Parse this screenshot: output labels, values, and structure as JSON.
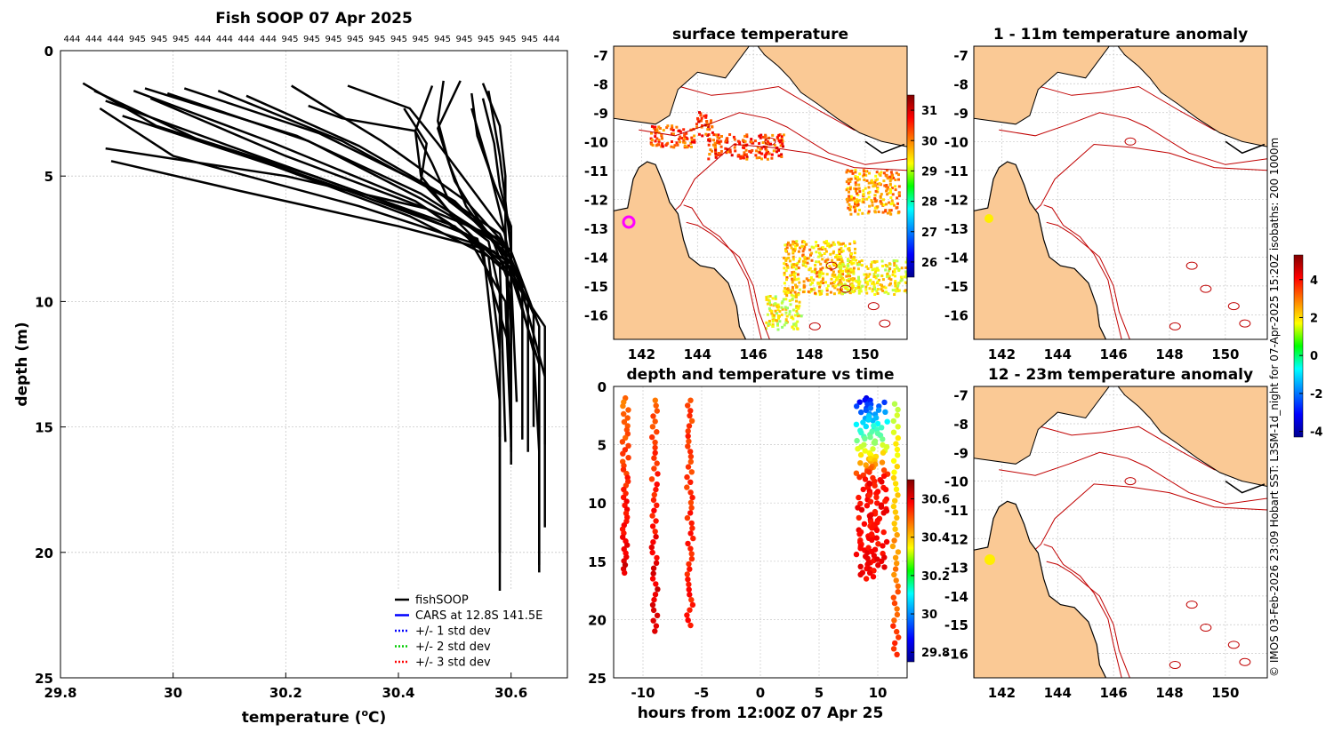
{
  "chart_data": [
    {
      "id": "profile",
      "type": "line",
      "title": "Fish SOOP 07 Apr 2025",
      "top_labels": [
        "444",
        "444",
        "444",
        "945",
        "945",
        "945",
        "444",
        "444",
        "444",
        "444",
        "945",
        "945",
        "945",
        "945",
        "945",
        "945",
        "945",
        "945",
        "945",
        "945",
        "945",
        "945",
        "444"
      ],
      "xlabel": "temperature (",
      "xlabel_sup": "o",
      "xlabel_end": "C)",
      "ylabel": "depth (m)",
      "xlim": [
        29.8,
        30.7
      ],
      "ylim": [
        0,
        25
      ],
      "xticks": [
        29.8,
        30,
        30.2,
        30.4,
        30.6
      ],
      "xtick_labels": [
        "29.8",
        "30",
        "30.2",
        "30.4",
        "30.6"
      ],
      "yticks": [
        0,
        5,
        10,
        15,
        20,
        25
      ],
      "legend": [
        {
          "label": "fishSOOP",
          "color": "#000000",
          "style": "solid"
        },
        {
          "label": "CARS at 12.8S 141.5E",
          "color": "#0000ff",
          "style": "solid"
        },
        {
          "label": "+/- 1 std dev",
          "color": "#0000ff",
          "style": "dotted"
        },
        {
          "label": "+/- 2 std dev",
          "color": "#00cc00",
          "style": "dotted"
        },
        {
          "label": "+/- 3 std dev",
          "color": "#ff0000",
          "style": "dotted"
        }
      ],
      "series": [
        {
          "name": "p1",
          "points": [
            [
              29.84,
              1.3
            ],
            [
              29.97,
              3.0
            ],
            [
              30.25,
              5.0
            ],
            [
              30.5,
              7.0
            ],
            [
              30.6,
              9.0
            ],
            [
              30.61,
              14.0
            ]
          ]
        },
        {
          "name": "p2",
          "points": [
            [
              29.86,
              1.6
            ],
            [
              30.04,
              3.5
            ],
            [
              30.3,
              5.5
            ],
            [
              30.52,
              7.3
            ],
            [
              30.59,
              10.0
            ],
            [
              30.6,
              15.5
            ]
          ]
        },
        {
          "name": "p3",
          "points": [
            [
              29.88,
              2.0
            ],
            [
              30.1,
              3.8
            ],
            [
              30.35,
              5.8
            ],
            [
              30.54,
              7.5
            ],
            [
              30.6,
              12.0
            ],
            [
              30.6,
              16.0
            ]
          ]
        },
        {
          "name": "p4",
          "points": [
            [
              29.87,
              2.3
            ],
            [
              30.0,
              4.2
            ],
            [
              30.33,
              6.2
            ],
            [
              30.55,
              7.8
            ],
            [
              30.58,
              14.0
            ],
            [
              30.58,
              20.0
            ]
          ]
        },
        {
          "name": "p5",
          "points": [
            [
              29.91,
              2.6
            ],
            [
              30.18,
              4.6
            ],
            [
              30.42,
              6.6
            ],
            [
              30.56,
              8.2
            ],
            [
              30.58,
              12.0
            ],
            [
              30.58,
              22.3
            ]
          ]
        },
        {
          "name": "p6",
          "points": [
            [
              29.93,
              1.6
            ],
            [
              30.18,
              3.7
            ],
            [
              30.43,
              6.0
            ],
            [
              30.6,
              8.5
            ],
            [
              30.64,
              12.0
            ],
            [
              30.65,
              16.0
            ]
          ]
        },
        {
          "name": "p7",
          "points": [
            [
              29.95,
              1.5
            ],
            [
              30.22,
              3.4
            ],
            [
              30.44,
              5.7
            ],
            [
              30.6,
              8.0
            ],
            [
              30.65,
              11.0
            ],
            [
              30.65,
              20.8
            ]
          ]
        },
        {
          "name": "p8",
          "points": [
            [
              29.96,
              1.9
            ],
            [
              30.2,
              4.2
            ],
            [
              30.45,
              6.3
            ],
            [
              30.61,
              8.8
            ],
            [
              30.66,
              13.0
            ],
            [
              30.66,
              19.0
            ]
          ]
        },
        {
          "name": "p9",
          "points": [
            [
              29.99,
              1.7
            ],
            [
              30.24,
              3.6
            ],
            [
              30.44,
              5.9
            ],
            [
              30.57,
              7.6
            ],
            [
              30.63,
              10.0
            ],
            [
              30.63,
              16.0
            ]
          ]
        },
        {
          "name": "p10",
          "points": [
            [
              30.02,
              1.5
            ],
            [
              30.26,
              3.3
            ],
            [
              30.46,
              5.5
            ],
            [
              30.58,
              7.3
            ],
            [
              30.62,
              9.3
            ],
            [
              30.62,
              15.5
            ]
          ]
        },
        {
          "name": "p11",
          "points": [
            [
              30.08,
              1.6
            ],
            [
              30.3,
              3.6
            ],
            [
              30.48,
              5.8
            ],
            [
              30.59,
              7.8
            ],
            [
              30.6,
              11.0
            ],
            [
              30.6,
              15.8
            ]
          ]
        },
        {
          "name": "p12",
          "points": [
            [
              30.13,
              1.8
            ],
            [
              30.33,
              3.8
            ],
            [
              30.5,
              6.0
            ],
            [
              30.6,
              8.3
            ],
            [
              30.6,
              16.5
            ]
          ]
        },
        {
          "name": "p13",
          "points": [
            [
              30.21,
              1.4
            ],
            [
              30.37,
              3.6
            ],
            [
              30.52,
              6.0
            ],
            [
              30.6,
              8.0
            ],
            [
              30.6,
              15.0
            ]
          ]
        },
        {
          "name": "p14",
          "points": [
            [
              30.24,
              2.2
            ],
            [
              30.3,
              2.7
            ],
            [
              30.43,
              3.2
            ],
            [
              30.46,
              4.5
            ],
            [
              30.49,
              6.0
            ],
            [
              30.55,
              7.0
            ],
            [
              30.6,
              8.5
            ],
            [
              30.6,
              15.5
            ]
          ]
        },
        {
          "name": "p15",
          "points": [
            [
              30.31,
              1.4
            ],
            [
              30.42,
              2.3
            ],
            [
              30.47,
              3.7
            ],
            [
              30.53,
              5.5
            ],
            [
              30.59,
              7.3
            ],
            [
              30.6,
              15.0
            ]
          ]
        },
        {
          "name": "p16",
          "points": [
            [
              30.41,
              2.3
            ],
            [
              30.45,
              3.7
            ],
            [
              30.44,
              5.2
            ],
            [
              30.49,
              6.4
            ],
            [
              30.56,
              7.6
            ],
            [
              30.58,
              9.7
            ],
            [
              30.58,
              15.4
            ]
          ]
        },
        {
          "name": "p17",
          "points": [
            [
              30.46,
              1.4
            ],
            [
              30.43,
              3.2
            ],
            [
              30.44,
              5.0
            ],
            [
              30.5,
              6.7
            ],
            [
              30.58,
              8.5
            ],
            [
              30.59,
              15.6
            ]
          ]
        },
        {
          "name": "p18",
          "points": [
            [
              30.48,
              1.2
            ],
            [
              30.47,
              2.8
            ],
            [
              30.49,
              4.5
            ],
            [
              30.52,
              6.2
            ],
            [
              30.57,
              7.7
            ],
            [
              30.6,
              9.5
            ],
            [
              30.6,
              15.6
            ]
          ]
        },
        {
          "name": "p19",
          "points": [
            [
              30.51,
              1.2
            ],
            [
              30.47,
              3.1
            ],
            [
              30.5,
              5.2
            ],
            [
              30.55,
              7.0
            ],
            [
              30.6,
              8.5
            ],
            [
              30.64,
              10.5
            ],
            [
              30.64,
              15.0
            ]
          ]
        },
        {
          "name": "p20",
          "points": [
            [
              30.53,
              1.7
            ],
            [
              30.54,
              3.4
            ],
            [
              30.57,
              5.3
            ],
            [
              30.6,
              7.0
            ],
            [
              30.6,
              16.0
            ]
          ]
        },
        {
          "name": "p21",
          "points": [
            [
              30.55,
              1.9
            ],
            [
              30.57,
              3.7
            ],
            [
              30.58,
              5.4
            ],
            [
              30.6,
              7.2
            ],
            [
              30.6,
              15.0
            ]
          ]
        },
        {
          "name": "p22",
          "points": [
            [
              30.56,
              1.6
            ],
            [
              30.58,
              4.2
            ],
            [
              30.59,
              6.0
            ],
            [
              30.6,
              8.0
            ],
            [
              30.6,
              15.8
            ]
          ]
        },
        {
          "name": "p23",
          "points": [
            [
              30.53,
              2.3
            ],
            [
              30.56,
              4.6
            ],
            [
              30.58,
              6.4
            ],
            [
              30.6,
              8.5
            ],
            [
              30.6,
              15.5
            ]
          ]
        },
        {
          "name": "p24",
          "points": [
            [
              30.55,
              1.3
            ],
            [
              30.58,
              3.0
            ],
            [
              30.59,
              5.0
            ],
            [
              30.59,
              7.0
            ],
            [
              30.6,
              15.3
            ]
          ]
        },
        {
          "name": "p25",
          "points": [
            [
              29.89,
              4.4
            ],
            [
              30.12,
              5.6
            ],
            [
              30.4,
              7.0
            ],
            [
              30.57,
              8.0
            ],
            [
              30.66,
              11.0
            ],
            [
              30.66,
              15.7
            ]
          ]
        },
        {
          "name": "p26",
          "points": [
            [
              29.88,
              3.9
            ],
            [
              30.2,
              5.0
            ],
            [
              30.45,
              6.3
            ],
            [
              30.58,
              7.5
            ],
            [
              30.65,
              12.5
            ],
            [
              30.65,
              20.5
            ]
          ]
        }
      ]
    },
    {
      "id": "surface-temp-map",
      "type": "heatmap",
      "title": "surface temperature",
      "xticks": [
        142,
        144,
        146,
        148,
        150
      ],
      "yticks": [
        -7,
        -8,
        -9,
        -10,
        -11,
        -12,
        -13,
        -14,
        -15,
        -16
      ],
      "colorbar_ticks": [
        26,
        27,
        28,
        29,
        30,
        31
      ],
      "colorbar_range": [
        25.5,
        31.5
      ]
    },
    {
      "id": "depth-time-scatter",
      "type": "scatter",
      "title": "depth and temperature vs time",
      "xlabel": "hours from 12:00Z 07 Apr 25",
      "xlim": [
        -12.5,
        12.5
      ],
      "ylim": [
        0,
        25
      ],
      "xticks": [
        -10,
        -5,
        0,
        5,
        10
      ],
      "yticks": [
        0,
        5,
        10,
        15,
        20,
        25
      ],
      "colorbar_ticks": [
        "30.6",
        "30.4",
        "30.2",
        "30",
        "29.8"
      ],
      "colorbar_range": [
        29.75,
        30.7
      ],
      "columns": [
        {
          "x": -11.5,
          "ymin": 1.0,
          "ymax": 16.0,
          "t_top": 30.48,
          "t_bottom": 30.62
        },
        {
          "x": -9.0,
          "ymin": 1.2,
          "ymax": 21.0,
          "t_top": 30.5,
          "t_bottom": 30.63
        },
        {
          "x": -6.0,
          "ymin": 1.2,
          "ymax": 20.5,
          "t_top": 30.52,
          "t_bottom": 30.57
        },
        {
          "x": 9.0,
          "ymin": 1.0,
          "ymax": 16.5,
          "t_top": 29.85,
          "t_bottom": 30.58
        },
        {
          "x": 10.0,
          "ymin": 1.2,
          "ymax": 16.0,
          "t_top": 29.9,
          "t_bottom": 30.58
        },
        {
          "x": 11.5,
          "ymin": 1.5,
          "ymax": 23.0,
          "t_top": 30.3,
          "t_bottom": 30.55
        }
      ]
    },
    {
      "id": "anomaly-map-1",
      "type": "heatmap",
      "title": "1 - 11m temperature anomaly",
      "xticks": [
        142,
        144,
        146,
        148,
        150
      ],
      "yticks": [
        -7,
        -8,
        -9,
        -10,
        -11,
        -12,
        -13,
        -14,
        -15,
        -16
      ]
    },
    {
      "id": "anomaly-map-2",
      "type": "heatmap",
      "title": "12 - 23m temperature anomaly",
      "xticks": [
        142,
        144,
        146,
        148,
        150
      ],
      "yticks": [
        -7,
        -8,
        -9,
        -10,
        -11,
        -12,
        -13,
        -14,
        -15,
        -16
      ]
    },
    {
      "id": "anomaly-colorbar",
      "type": "heatmap",
      "colorbar_ticks": [
        4,
        2,
        0,
        -2,
        -4
      ],
      "colorbar_range": [
        -4.3,
        5.3
      ]
    }
  ],
  "footer_note": "© IMOS 03-Feb-2026 23:09 Hobart SST: L3SM-1d_night for 07-Apr-2025 15:20Z isobaths: 200  1000m",
  "colors": {
    "land": "#fac995",
    "coast": "#000000",
    "isobath": "#c00000",
    "grid": "#c8c8c8",
    "marker_magenta": "#ff00ff",
    "marker_yellow": "#ffee00"
  }
}
